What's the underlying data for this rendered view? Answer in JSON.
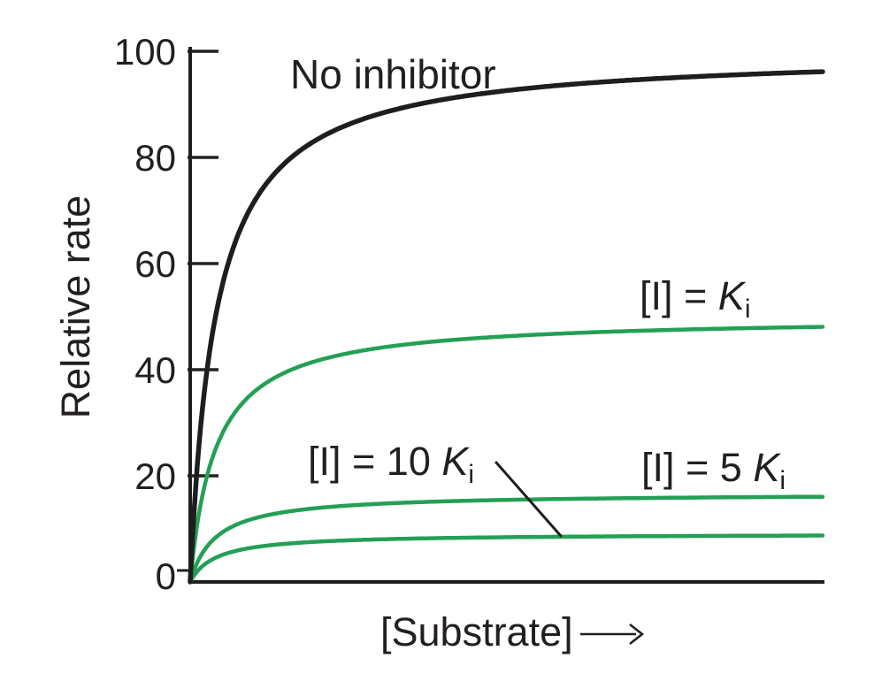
{
  "chart_data": {
    "type": "line",
    "title": "",
    "xlabel": "[Substrate]",
    "xlabel_arrow": "right-arrow",
    "ylabel": "Relative rate",
    "ylim": [
      0,
      100
    ],
    "yticks": [
      0,
      20,
      40,
      60,
      80,
      100
    ],
    "xticks": [],
    "grid": false,
    "legend": "inline curve labels (no legend box)",
    "curve_model": "Michaelis-Menten saturation: v = Vmax*[S]/(Km+[S]); noncompetitive inhibition lowers Vmax, Km unchanged",
    "km_fraction_of_x_range": 0.04,
    "series": [
      {
        "name": "No inhibitor",
        "vmax": 100,
        "value_at_right_edge": 96,
        "color": "#1e1e1e",
        "stroke_width": 5.5
      },
      {
        "name": "[I] = Ki",
        "vmax": 50,
        "value_at_right_edge": 48,
        "color": "#23a055",
        "stroke_width": 4.5
      },
      {
        "name": "[I] = 5 Ki",
        "vmax": 16.7,
        "value_at_right_edge": 16,
        "color": "#23a055",
        "stroke_width": 4.5
      },
      {
        "name": "[I] = 10 Ki",
        "vmax": 9.1,
        "value_at_right_edge": 9,
        "color": "#23a055",
        "stroke_width": 4.5
      }
    ],
    "annotations": [
      {
        "text": "No inhibitor",
        "refers_to": "black curve plateauing near 96",
        "position": "above upper-left of curve"
      },
      {
        "text": "[I] = Ki",
        "refers_to": "green curve plateauing near 48",
        "position": "above right end of curve"
      },
      {
        "text": "[I] = 5 Ki",
        "refers_to": "green curve plateauing near 16",
        "position": "above right end of curve"
      },
      {
        "text": "[I] = 10 Ki",
        "refers_to": "lowest green curve plateauing near 9",
        "position": "left-center, joined to curve by diagonal leader line"
      }
    ]
  },
  "labels": {
    "y_axis": "Relative rate",
    "x_axis": "[Substrate]",
    "no_inhibitor": "No inhibitor",
    "ki1": {
      "prefix": "[I] = ",
      "symbol": "K",
      "subscript": "i"
    },
    "ki5": {
      "prefix": "[I] = 5 ",
      "symbol": "K",
      "subscript": "i"
    },
    "ki10": {
      "prefix": "[I] = 10 ",
      "symbol": "K",
      "subscript": "i"
    }
  },
  "colors": {
    "background": "#ffffff",
    "ink": "#231f20",
    "curve_black": "#1e1e1e",
    "curve_green": "#23a055"
  }
}
